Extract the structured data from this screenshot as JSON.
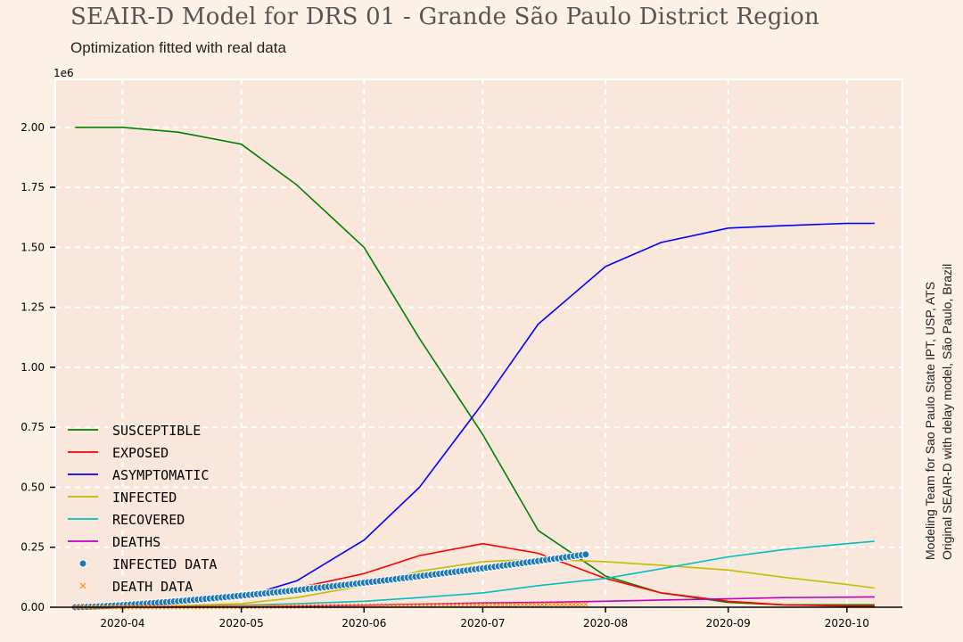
{
  "header": {
    "title": "SEAIR-D Model for DRS 01 - Grande São Paulo District Region",
    "subtitle": "Optimization fitted with real data"
  },
  "credits": {
    "line1": "Modeling Team for Sao Paulo State IPT, USP, ATS",
    "line2": "Original SEAIR-D with delay model, São Paulo, Brazil"
  },
  "chart_data": {
    "type": "line",
    "title": "SEAIR-D Model for DRS 01 - Grande São Paulo District Region",
    "subtitle": "Optimization fitted with real data",
    "xlabel": "",
    "ylabel": "",
    "y_multiplier_label": "1e6",
    "xlim": [
      "2020-03-15",
      "2020-10-15"
    ],
    "ylim": [
      0,
      2.2
    ],
    "x_ticks": [
      "2020-04",
      "2020-05",
      "2020-06",
      "2020-07",
      "2020-08",
      "2020-09",
      "2020-10"
    ],
    "y_ticks": [
      "0.00",
      "0.25",
      "0.50",
      "0.75",
      "1.00",
      "1.25",
      "1.50",
      "1.75",
      "2.00"
    ],
    "grid": true,
    "legend_position": "lower-left",
    "x": [
      "2020-03-20",
      "2020-04-01",
      "2020-04-15",
      "2020-05-01",
      "2020-05-15",
      "2020-06-01",
      "2020-06-15",
      "2020-07-01",
      "2020-07-15",
      "2020-08-01",
      "2020-08-15",
      "2020-09-01",
      "2020-09-15",
      "2020-10-01",
      "2020-10-08"
    ],
    "series": [
      {
        "name": "Susceptible",
        "color": "#008000",
        "style": "line",
        "values": [
          2.0,
          2.0,
          1.98,
          1.93,
          1.76,
          1.5,
          1.12,
          0.72,
          0.32,
          0.13,
          0.06,
          0.02,
          0.01,
          0.01,
          0.01
        ]
      },
      {
        "name": "Exposed",
        "color": "#ff0000",
        "style": "line",
        "values": [
          0.0,
          0.005,
          0.015,
          0.04,
          0.08,
          0.14,
          0.215,
          0.265,
          0.225,
          0.12,
          0.06,
          0.025,
          0.01,
          0.005,
          0.005
        ]
      },
      {
        "name": "Asymptomatic",
        "color": "#0000ff",
        "style": "line",
        "values": [
          0.0,
          0.005,
          0.015,
          0.04,
          0.11,
          0.28,
          0.5,
          0.85,
          1.18,
          1.42,
          1.52,
          1.58,
          1.59,
          1.6,
          1.6
        ]
      },
      {
        "name": "Infected",
        "color": "#bfbf00",
        "style": "line",
        "values": [
          0.0,
          0.002,
          0.006,
          0.015,
          0.04,
          0.09,
          0.15,
          0.19,
          0.2,
          0.19,
          0.175,
          0.155,
          0.125,
          0.095,
          0.08
        ]
      },
      {
        "name": "Recovered",
        "color": "#00bfbf",
        "style": "line",
        "values": [
          0.0,
          0.001,
          0.003,
          0.008,
          0.015,
          0.025,
          0.04,
          0.06,
          0.09,
          0.12,
          0.16,
          0.21,
          0.24,
          0.265,
          0.275
        ]
      },
      {
        "name": "Deaths",
        "color": "#bf00bf",
        "style": "line",
        "values": [
          0.0,
          0.0005,
          0.001,
          0.002,
          0.004,
          0.008,
          0.013,
          0.018,
          0.02,
          0.025,
          0.03,
          0.035,
          0.04,
          0.042,
          0.043
        ]
      },
      {
        "name": "Infected data",
        "color": "#1f77b4",
        "style": "markers",
        "x_range": [
          "2020-03-20",
          "2020-07-27"
        ],
        "start_value": 0.0,
        "end_value": 0.22
      },
      {
        "name": "Death data",
        "color": "#ff7f0e",
        "style": "x-markers",
        "x_range": [
          "2020-03-20",
          "2020-07-27"
        ],
        "start_value": 0.0,
        "end_value": 0.012
      }
    ]
  },
  "legend_labels": [
    "Susceptible",
    "Exposed",
    "Asymptomatic",
    "Infected",
    "Recovered",
    "Deaths",
    "Infected data",
    "Death data"
  ]
}
